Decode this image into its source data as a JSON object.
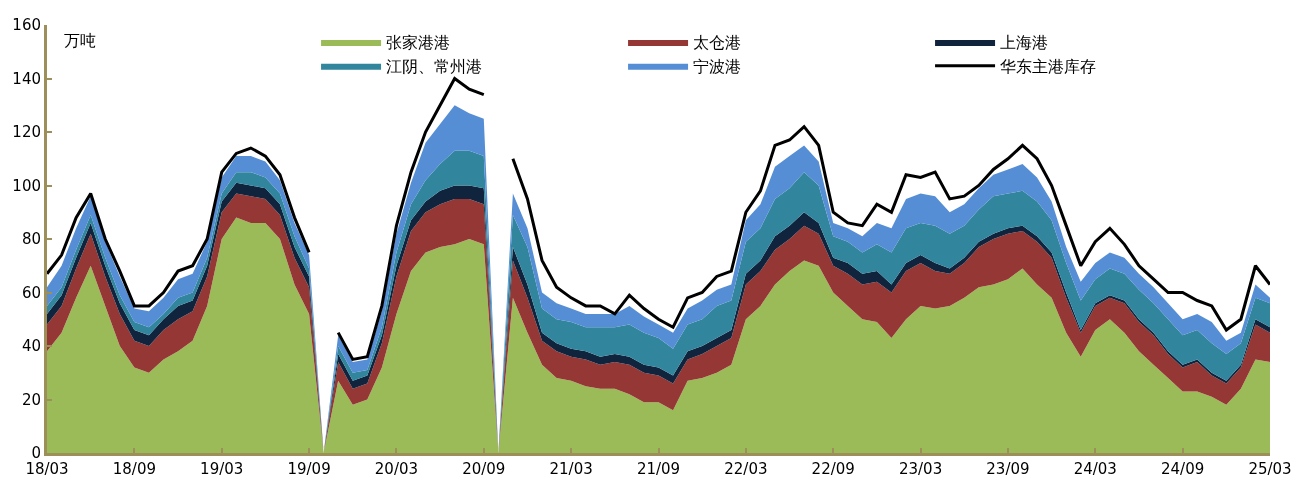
{
  "chart_data": {
    "type": "area",
    "stacked": true,
    "ylabel": "万吨",
    "legend": "top",
    "categories": [
      "18/03",
      null,
      null,
      null,
      null,
      null,
      "18/09",
      null,
      null,
      null,
      null,
      null,
      "19/03",
      null,
      null,
      null,
      null,
      null,
      "19/09",
      null,
      null,
      null,
      null,
      null,
      "20/03",
      null,
      null,
      null,
      null,
      null,
      "20/09",
      null,
      null,
      null,
      null,
      null,
      "21/03",
      null,
      null,
      null,
      null,
      null,
      "21/09",
      null,
      null,
      null,
      null,
      null,
      "22/03",
      null,
      null,
      null,
      null,
      null,
      "22/09",
      null,
      null,
      null,
      null,
      null,
      "23/03",
      null,
      null,
      null,
      null,
      null,
      "23/09",
      null,
      null,
      null,
      null,
      null,
      "24/03",
      null,
      null,
      null,
      null,
      null,
      "24/09",
      null,
      null,
      null,
      null,
      null,
      "25/03"
    ],
    "ylim": [
      0,
      160
    ],
    "yticks": [
      0,
      20,
      40,
      60,
      80,
      100,
      120,
      140,
      160
    ],
    "series": [
      {
        "name": "张家港港",
        "color": "#9bbb59",
        "values": [
          38,
          45,
          58,
          70,
          55,
          40,
          32,
          30,
          35,
          38,
          42,
          55,
          80,
          88,
          86,
          86,
          80,
          63,
          52,
          null,
          27,
          18,
          20,
          32,
          52,
          68,
          75,
          77,
          78,
          80,
          78,
          null,
          58,
          45,
          33,
          28,
          27,
          25,
          24,
          24,
          22,
          19,
          19,
          16,
          27,
          28,
          30,
          33,
          50,
          55,
          63,
          68,
          72,
          70,
          60,
          55,
          50,
          49,
          43,
          50,
          55,
          54,
          55,
          58,
          62,
          63,
          65,
          69,
          63,
          58,
          45,
          36,
          46,
          50,
          45,
          38,
          33,
          28,
          23,
          23,
          21,
          18,
          24,
          35,
          34
        ]
      },
      {
        "name": "太仓港",
        "color": "#953735",
        "values": [
          10,
          10,
          11,
          12,
          11,
          12,
          10,
          10,
          11,
          12,
          11,
          11,
          10,
          9,
          10,
          9,
          9,
          10,
          10,
          null,
          7,
          6,
          6,
          9,
          14,
          15,
          15,
          16,
          17,
          15,
          15,
          null,
          14,
          13,
          9,
          10,
          9,
          10,
          9,
          10,
          11,
          11,
          10,
          10,
          8,
          9,
          10,
          10,
          13,
          13,
          13,
          12,
          13,
          12,
          10,
          12,
          13,
          15,
          17,
          18,
          16,
          14,
          12,
          13,
          15,
          17,
          17,
          14,
          16,
          15,
          13,
          9,
          9,
          8,
          11,
          11,
          11,
          9,
          9,
          11,
          8,
          8,
          8,
          13,
          11
        ]
      },
      {
        "name": "上海港",
        "color": "#10243e",
        "values": [
          4,
          4,
          4,
          4,
          4,
          4,
          4,
          4,
          4,
          5,
          4,
          4,
          4,
          4,
          4,
          4,
          4,
          4,
          4,
          null,
          3,
          3,
          3,
          3,
          4,
          4,
          4,
          5,
          5,
          5,
          6,
          null,
          5,
          5,
          3,
          3,
          3,
          3,
          3,
          3,
          3,
          3,
          3,
          3,
          3,
          3,
          3,
          3,
          4,
          4,
          5,
          5,
          5,
          4,
          3,
          4,
          4,
          4,
          3,
          3,
          3,
          3,
          2,
          2,
          2,
          2,
          2,
          2,
          2,
          2,
          2,
          1,
          1,
          1,
          1,
          1,
          1,
          1,
          1,
          1,
          1,
          1,
          1,
          2,
          2
        ]
      },
      {
        "name": "江阴、常州港",
        "color": "#31859c",
        "values": [
          3,
          3,
          3,
          3,
          3,
          3,
          3,
          3,
          2,
          3,
          3,
          3,
          3,
          4,
          5,
          4,
          4,
          4,
          3,
          null,
          3,
          3,
          2,
          3,
          5,
          6,
          8,
          10,
          13,
          13,
          12,
          null,
          12,
          14,
          9,
          9,
          10,
          9,
          11,
          10,
          12,
          12,
          11,
          10,
          10,
          10,
          12,
          11,
          12,
          12,
          14,
          14,
          15,
          14,
          8,
          8,
          8,
          10,
          12,
          13,
          12,
          14,
          13,
          12,
          12,
          14,
          13,
          13,
          13,
          12,
          11,
          11,
          9,
          10,
          10,
          11,
          11,
          12,
          11,
          11,
          11,
          10,
          8,
          8,
          9
        ]
      },
      {
        "name": "宁波港",
        "color": "#558ed5",
        "values": [
          7,
          8,
          8,
          7,
          6,
          7,
          5,
          6,
          6,
          7,
          7,
          6,
          6,
          6,
          6,
          6,
          5,
          5,
          5,
          null,
          4,
          4,
          4,
          6,
          7,
          8,
          14,
          15,
          17,
          14,
          14,
          null,
          8,
          7,
          6,
          6,
          5,
          5,
          5,
          5,
          7,
          6,
          5,
          6,
          6,
          7,
          6,
          6,
          8,
          9,
          12,
          12,
          10,
          9,
          5,
          5,
          6,
          8,
          9,
          11,
          11,
          11,
          8,
          8,
          8,
          8,
          9,
          10,
          9,
          7,
          6,
          7,
          6,
          6,
          6,
          6,
          6,
          6,
          6,
          6,
          8,
          5,
          4,
          5,
          2
        ]
      },
      {
        "name": "华东主港库存",
        "type": "line",
        "color": "#000000",
        "values": [
          67,
          74,
          88,
          97,
          80,
          68,
          55,
          55,
          60,
          68,
          70,
          80,
          105,
          112,
          114,
          111,
          104,
          88,
          75,
          null,
          45,
          35,
          36,
          55,
          85,
          105,
          120,
          130,
          140,
          136,
          134,
          null,
          110,
          95,
          72,
          62,
          58,
          55,
          55,
          52,
          59,
          54,
          50,
          47,
          58,
          60,
          66,
          68,
          90,
          98,
          115,
          117,
          122,
          115,
          90,
          86,
          85,
          93,
          90,
          104,
          103,
          105,
          95,
          96,
          100,
          106,
          110,
          115,
          110,
          100,
          85,
          70,
          79,
          84,
          78,
          70,
          65,
          60,
          60,
          57,
          55,
          46,
          50,
          70,
          63
        ]
      }
    ]
  }
}
